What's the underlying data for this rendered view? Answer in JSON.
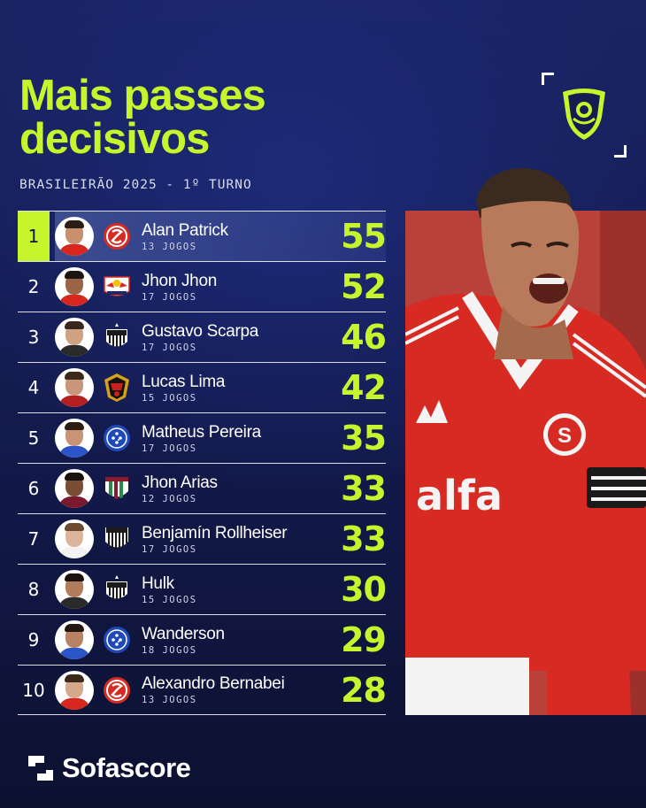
{
  "header": {
    "title_line1": "Mais passes",
    "title_line2": "decisivos",
    "subtitle": "BRASILEIRÃO 2025 - 1º TURNO"
  },
  "logo": {
    "icon": "brasileirao-trophy-icon",
    "color": "#c6f52c"
  },
  "colors": {
    "accent": "#c6f52c",
    "background": "#141c52",
    "text": "#ffffff"
  },
  "rankings": [
    {
      "rank": "1",
      "name": "Alan Patrick",
      "games": "13 JOGOS",
      "value": "55",
      "club": "internacional",
      "skin": "#c99070",
      "hair": "#2a1d16",
      "shirt": "#d6261e"
    },
    {
      "rank": "2",
      "name": "Jhon Jhon",
      "games": "17 JOGOS",
      "value": "52",
      "club": "bragantino",
      "skin": "#9a6447",
      "hair": "#1e1410",
      "shirt": "#d6261e"
    },
    {
      "rank": "3",
      "name": "Gustavo Scarpa",
      "games": "17 JOGOS",
      "value": "46",
      "club": "atletico-mg",
      "skin": "#d0a284",
      "hair": "#3a271c",
      "shirt": "#2a2a2a"
    },
    {
      "rank": "4",
      "name": "Lucas Lima",
      "games": "15 JOGOS",
      "value": "42",
      "club": "sport",
      "skin": "#c8967a",
      "hair": "#3b2a1c",
      "shirt": "#b42020"
    },
    {
      "rank": "5",
      "name": "Matheus Pereira",
      "games": "17 JOGOS",
      "value": "35",
      "club": "cruzeiro",
      "skin": "#c89478",
      "hair": "#2c1e14",
      "shirt": "#2b55c8"
    },
    {
      "rank": "6",
      "name": "Jhon Arias",
      "games": "12 JOGOS",
      "value": "33",
      "club": "fluminense",
      "skin": "#7a4e34",
      "hair": "#1a120c",
      "shirt": "#7a1a2e"
    },
    {
      "rank": "7",
      "name": "Benjamín Rollheiser",
      "games": "17 JOGOS",
      "value": "33",
      "club": "santos",
      "skin": "#dcb49a",
      "hair": "#6a4a30",
      "shirt": "#f2f2f2"
    },
    {
      "rank": "8",
      "name": "Hulk",
      "games": "15 JOGOS",
      "value": "30",
      "club": "atletico-mg",
      "skin": "#b07c5c",
      "hair": "#1a120c",
      "shirt": "#2a2a2a"
    },
    {
      "rank": "9",
      "name": "Wanderson",
      "games": "18 JOGOS",
      "value": "29",
      "club": "cruzeiro",
      "skin": "#b88264",
      "hair": "#231810",
      "shirt": "#2b55c8"
    },
    {
      "rank": "10",
      "name": "Alexandro Bernabei",
      "games": "13 JOGOS",
      "value": "28",
      "club": "internacional",
      "skin": "#d6a88a",
      "hair": "#3a2818",
      "shirt": "#d6261e"
    }
  ],
  "footer": {
    "brand": "Sofascore",
    "icon": "sofascore-logo-icon"
  }
}
